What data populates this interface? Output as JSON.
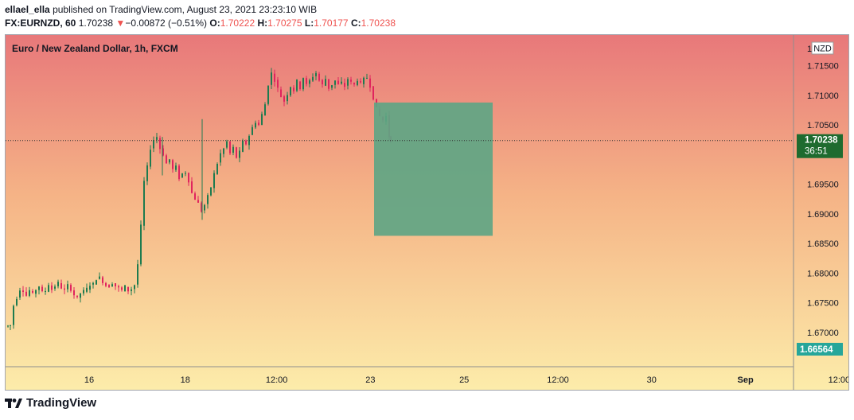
{
  "publish_line": {
    "author": "ellael_ella",
    "rest": "published on TradingView.com, August 23, 2021 23:23:10 WIB"
  },
  "quote_line": {
    "symbol": "FX:EURNZD, 60",
    "last": "1.70238",
    "arrow": "▼",
    "change": "−0.00872 (−0.51%)",
    "o_label": "O:",
    "o_value": "1.70222",
    "h_label": "H:",
    "h_value": "1.70275",
    "l_label": "L:",
    "l_value": "1.70177",
    "c_label": "C:",
    "c_value": "1.70238"
  },
  "brand": "TradingView",
  "colors": {
    "up": "#26a69a",
    "down": "#ef5350",
    "candle_up_body": "#1e7b4f",
    "candle_down_body": "#e0245e",
    "bg_top": "#e8787a",
    "bg_bottom": "#fcecaa",
    "last_price_bg": "#1e6b2f",
    "target_label_bg": "#26a69a",
    "box_fill": "#5fa584"
  },
  "chart_data": {
    "type": "candlestick",
    "title": "Euro / New Zealand Dollar, 1h, FXCM",
    "currency_badge": "NZD",
    "y_range": [
      1.6642,
      1.7202
    ],
    "y_ticks": [
      "1.71500",
      "1.71000",
      "1.70500",
      "1.69500",
      "1.69000",
      "1.68500",
      "1.68000",
      "1.67500",
      "1.67000"
    ],
    "y_top_partial": "1.7",
    "x_ticks": [
      "16",
      "18",
      "12:00",
      "23",
      "25",
      "12:00",
      "30",
      "Sep",
      "12:00"
    ],
    "last_price": {
      "value": "1.70238",
      "countdown": "36:51"
    },
    "target_price": {
      "value": "1.66564"
    },
    "projection_box": {
      "y_top": 1.7088,
      "y_bottom": 1.6863
    },
    "close_path": [
      [
        0,
        1.671
      ],
      [
        6,
        1.6712
      ],
      [
        10,
        1.6745
      ],
      [
        14,
        1.6758
      ],
      [
        18,
        1.6772
      ],
      [
        22,
        1.677
      ],
      [
        26,
        1.6762
      ],
      [
        30,
        1.6771
      ],
      [
        34,
        1.6765
      ],
      [
        38,
        1.6772
      ],
      [
        42,
        1.6778
      ],
      [
        46,
        1.6768
      ],
      [
        50,
        1.677
      ],
      [
        54,
        1.6781
      ],
      [
        58,
        1.6772
      ],
      [
        62,
        1.6778
      ],
      [
        66,
        1.6784
      ],
      [
        70,
        1.6775
      ],
      [
        74,
        1.6771
      ],
      [
        78,
        1.678
      ],
      [
        82,
        1.6772
      ],
      [
        86,
        1.6763
      ],
      [
        90,
        1.6758
      ],
      [
        94,
        1.6766
      ],
      [
        98,
        1.677
      ],
      [
        102,
        1.6774
      ],
      [
        106,
        1.678
      ],
      [
        110,
        1.6782
      ],
      [
        114,
        1.679
      ],
      [
        118,
        1.6793
      ],
      [
        122,
        1.6785
      ],
      [
        126,
        1.6779
      ],
      [
        130,
        1.6777
      ],
      [
        134,
        1.6783
      ],
      [
        138,
        1.6778
      ],
      [
        142,
        1.6775
      ],
      [
        146,
        1.6771
      ],
      [
        150,
        1.6778
      ],
      [
        154,
        1.677
      ],
      [
        158,
        1.6773
      ],
      [
        162,
        1.678
      ],
      [
        166,
        1.6815
      ],
      [
        170,
        1.688
      ],
      [
        174,
        1.6955
      ],
      [
        178,
        1.698
      ],
      [
        182,
        1.701
      ],
      [
        186,
        1.7025
      ],
      [
        190,
        1.703
      ],
      [
        194,
        1.701
      ],
      [
        198,
        1.7
      ],
      [
        202,
        1.6985
      ],
      [
        206,
        1.6992
      ],
      [
        210,
        1.6975
      ],
      [
        214,
        1.698
      ],
      [
        218,
        1.696
      ],
      [
        222,
        1.6968
      ],
      [
        226,
        1.697
      ],
      [
        230,
        1.6955
      ],
      [
        234,
        1.6935
      ],
      [
        238,
        1.6925
      ],
      [
        242,
        1.6918
      ],
      [
        246,
        1.6905
      ],
      [
        250,
        1.6915
      ],
      [
        254,
        1.693
      ],
      [
        258,
        1.6945
      ],
      [
        262,
        1.6968
      ],
      [
        266,
        1.6985
      ],
      [
        270,
        1.7002
      ],
      [
        274,
        1.701
      ],
      [
        278,
        1.7022
      ],
      [
        282,
        1.7002
      ],
      [
        286,
        1.7012
      ],
      [
        290,
        1.6995
      ],
      [
        294,
        1.7005
      ],
      [
        298,
        1.7022
      ],
      [
        302,
        1.7018
      ],
      [
        306,
        1.7032
      ],
      [
        310,
        1.7046
      ],
      [
        314,
        1.7055
      ],
      [
        318,
        1.705
      ],
      [
        322,
        1.7068
      ],
      [
        326,
        1.7085
      ],
      [
        330,
        1.7118
      ],
      [
        334,
        1.7138
      ],
      [
        338,
        1.7125
      ],
      [
        342,
        1.7112
      ],
      [
        346,
        1.7098
      ],
      [
        350,
        1.709
      ],
      [
        354,
        1.7102
      ],
      [
        358,
        1.7115
      ],
      [
        362,
        1.7108
      ],
      [
        366,
        1.7125
      ],
      [
        370,
        1.7112
      ],
      [
        374,
        1.713
      ],
      [
        378,
        1.7118
      ],
      [
        382,
        1.7125
      ],
      [
        386,
        1.7132
      ],
      [
        390,
        1.7138
      ],
      [
        394,
        1.7125
      ],
      [
        398,
        1.7118
      ],
      [
        402,
        1.7128
      ],
      [
        406,
        1.7112
      ],
      [
        410,
        1.7118
      ],
      [
        414,
        1.7125
      ],
      [
        418,
        1.7118
      ],
      [
        422,
        1.7122
      ],
      [
        426,
        1.7115
      ],
      [
        430,
        1.7128
      ],
      [
        434,
        1.7122
      ],
      [
        438,
        1.7118
      ],
      [
        442,
        1.7126
      ],
      [
        446,
        1.712
      ],
      [
        450,
        1.7128
      ],
      [
        454,
        1.713
      ],
      [
        458,
        1.7115
      ],
      [
        462,
        1.7095
      ],
      [
        466,
        1.7078
      ],
      [
        470,
        1.7065
      ],
      [
        474,
        1.7058
      ],
      [
        478,
        1.7065
      ],
      [
        482,
        1.703
      ],
      [
        484,
        1.7024
      ]
    ]
  }
}
